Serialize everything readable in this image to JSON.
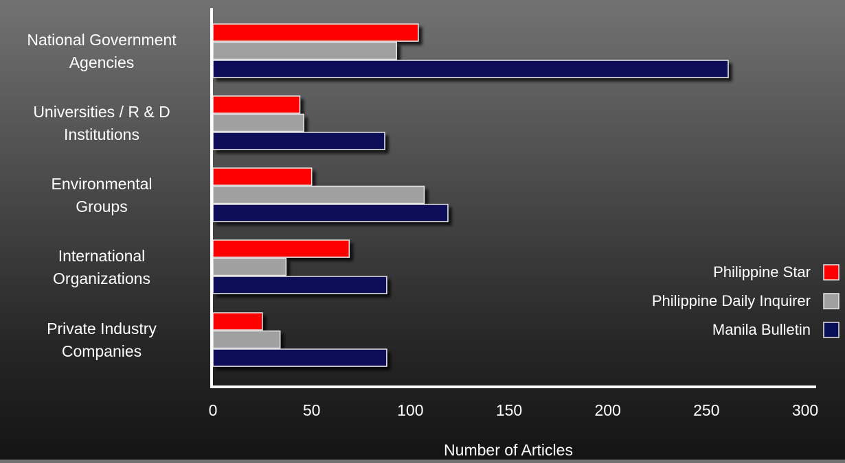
{
  "chart_data": {
    "type": "bar",
    "orientation": "horizontal",
    "categories": [
      [
        "National Government",
        "Agencies"
      ],
      [
        "Universities / R & D",
        "Institutions"
      ],
      [
        "Environmental",
        "Groups"
      ],
      [
        "International",
        "Organizations"
      ],
      [
        "Private Industry",
        "Companies"
      ]
    ],
    "series": [
      {
        "name": "Philippine Star",
        "color": "#ff0000",
        "values": [
          104,
          44,
          50,
          69,
          25
        ]
      },
      {
        "name": "Philippine Daily Inquirer",
        "color": "#a0a0a0",
        "values": [
          93,
          46,
          107,
          37,
          34
        ]
      },
      {
        "name": "Manila Bulletin",
        "color": "#0a0f5a",
        "values": [
          261,
          87,
          119,
          88,
          88
        ]
      }
    ],
    "xlabel": "Number of Articles",
    "xlim": [
      0,
      300
    ],
    "xticks": [
      0,
      50,
      100,
      150,
      200,
      250,
      300
    ],
    "grid": false,
    "legend": "right"
  }
}
